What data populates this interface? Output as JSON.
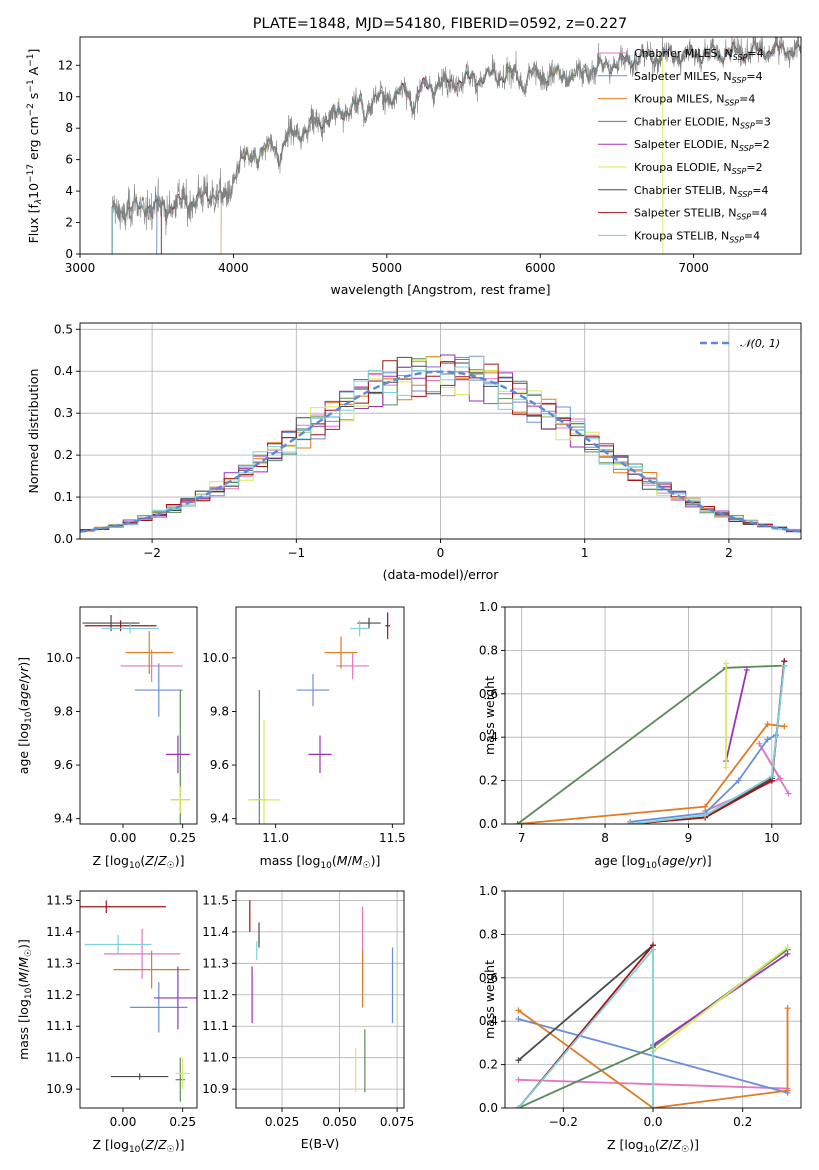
{
  "figure_title": "PLATE=1848, MJD=54180, FIBERID=0592, z=0.227",
  "models": [
    {
      "name": "Chabrier MILES, N$_{SSP}$=4",
      "label": "Chabrier MILES, N",
      "sub": "SSP",
      "suffix": "=4",
      "color": "#e377c2"
    },
    {
      "name": "Salpeter MILES, N$_{SSP}$=4",
      "label": "Salpeter MILES, N",
      "sub": "SSP",
      "suffix": "=4",
      "color": "#6a8fd8"
    },
    {
      "name": "Kroupa MILES, N$_{SSP}$=4",
      "label": "Kroupa MILES, N",
      "sub": "SSP",
      "suffix": "=4",
      "color": "#e07b22"
    },
    {
      "name": "Chabrier ELODIE, N$_{SSP}$=3",
      "label": "Chabrier ELODIE, N",
      "sub": "SSP",
      "suffix": "=3",
      "color": "#5a8a5a"
    },
    {
      "name": "Salpeter ELODIE, N$_{SSP}$=2",
      "label": "Salpeter ELODIE, N",
      "sub": "SSP",
      "suffix": "=2",
      "color": "#9a32b8"
    },
    {
      "name": "Kroupa ELODIE, N$_{SSP}$=2",
      "label": "Kroupa ELODIE, N",
      "sub": "SSP",
      "suffix": "=2",
      "color": "#d8ea5a"
    },
    {
      "name": "Chabrier STELIB, N$_{SSP}$=4",
      "label": "Chabrier STELIB, N",
      "sub": "SSP",
      "suffix": "=4",
      "color": "#4a4a4a"
    },
    {
      "name": "Salpeter STELIB, N$_{SSP}$=4",
      "label": "Salpeter STELIB, N",
      "sub": "SSP",
      "suffix": "=4",
      "color": "#a01515"
    },
    {
      "name": "Kroupa STELIB, N$_{SSP}$=4",
      "label": "Kroupa STELIB, N",
      "sub": "SSP",
      "suffix": "=4",
      "color": "#7fd0d8"
    }
  ],
  "chart_data": [
    {
      "id": "spectrum",
      "type": "line",
      "xlabel": "wavelength [Angstrom, rest frame]",
      "ylabel": "Flux [f_λ10^-17 erg cm^-2 s^-1 A^-1]",
      "ylabel_parts": {
        "a": "Flux [f",
        "b": "λ",
        "c": "10",
        "d": "−17",
        "e": " erg cm",
        "f": "−2",
        "g": " s",
        "h": "−1",
        "i": " A",
        "j": "−1",
        "k": "]"
      },
      "xlim": [
        3000,
        7700
      ],
      "ylim": [
        0,
        13.8
      ],
      "xticks": [
        3000,
        4000,
        5000,
        6000,
        7000
      ],
      "yticks": [
        0,
        2,
        4,
        6,
        8,
        10,
        12
      ],
      "observed_color": "#808080",
      "continuum_x": [
        3210,
        3400,
        3550,
        3700,
        3850,
        3950,
        4050,
        4200,
        4400,
        4600,
        4800,
        5000,
        5200,
        5400,
        5600,
        5800,
        6000,
        6200,
        6400,
        6600,
        6800,
        7000,
        7200,
        7400,
        7600
      ],
      "continuum_y": [
        2.6,
        3.0,
        3.0,
        3.4,
        4.2,
        4.8,
        6.0,
        6.6,
        7.6,
        8.6,
        9.4,
        10.0,
        10.5,
        10.9,
        11.2,
        11.4,
        11.4,
        11.3,
        11.9,
        12.4,
        12.6,
        12.7,
        12.8,
        12.9,
        13.0
      ],
      "model_start_x": [
        3210,
        3500,
        3210,
        3210,
        3920,
        3920,
        3210,
        3530,
        3210
      ],
      "model_end_x": [
        7700,
        7700,
        7700,
        7700,
        7700,
        6800,
        7700,
        7700,
        7700
      ]
    },
    {
      "id": "residuals",
      "type": "histogram",
      "xlabel": "(data-model)/error",
      "ylabel": "Normed distribution",
      "xlim": [
        -2.5,
        2.5
      ],
      "ylim": [
        0,
        0.515
      ],
      "xticks": [
        -2,
        -1,
        0,
        1,
        2
      ],
      "xtick_labels": [
        "−2",
        "−1",
        "0",
        "1",
        "2"
      ],
      "yticks": [
        0,
        0.1,
        0.2,
        0.3,
        0.4,
        0.5
      ],
      "ytick_labels": [
        "0.0",
        "0.1",
        "0.2",
        "0.3",
        "0.4",
        "0.5"
      ],
      "bins": {
        "start": -2.5,
        "end": 2.5,
        "width": 0.1
      },
      "reference": {
        "label": "N(0,1)",
        "sigma": 1,
        "color": "#5a8ad8"
      }
    },
    {
      "id": "age_vs_Z",
      "type": "scatter",
      "xlabel": "Z [log10(Z/Z☉)]",
      "ylabel": "age  [log10(age/yr)]",
      "xlim": [
        -0.18,
        0.31
      ],
      "ylim": [
        9.38,
        10.19
      ],
      "xticks": [
        0.0,
        0.25
      ],
      "xtick_labels": [
        "0.00",
        "0.25"
      ],
      "yticks": [
        9.4,
        9.6,
        9.8,
        10.0
      ],
      "ytick_labels": [
        "9.4",
        "9.6",
        "9.8",
        "10.0"
      ],
      "points": [
        {
          "x": 0.12,
          "y": 9.97,
          "xerr": 0.13,
          "yerr": 0.06
        },
        {
          "x": 0.15,
          "y": 9.88,
          "xerr": 0.1,
          "yerr": 0.1
        },
        {
          "x": 0.11,
          "y": 10.02,
          "xerr": 0.1,
          "yerr": 0.08
        },
        {
          "x": 0.24,
          "y": 9.47,
          "xerr": 0.04,
          "yerr": 0.41
        },
        {
          "x": 0.23,
          "y": 9.64,
          "xerr": 0.05,
          "yerr": 0.07
        },
        {
          "x": 0.24,
          "y": 9.47,
          "xerr": 0.04,
          "yerr": 0.05
        },
        {
          "x": -0.05,
          "y": 10.13,
          "xerr": 0.12,
          "yerr": 0.03
        },
        {
          "x": -0.01,
          "y": 10.12,
          "xerr": 0.15,
          "yerr": 0.02
        },
        {
          "x": 0.03,
          "y": 10.11,
          "xerr": 0.12,
          "yerr": 0.02
        }
      ]
    },
    {
      "id": "age_vs_mass",
      "type": "scatter",
      "xlabel": "mass [log10(M/M☉)]",
      "ylabel": "",
      "xlim": [
        10.83,
        11.55
      ],
      "ylim": [
        9.38,
        10.19
      ],
      "xticks": [
        11.0,
        11.5
      ],
      "xtick_labels": [
        "11.0",
        "11.5"
      ],
      "yticks": [
        9.4,
        9.6,
        9.8,
        10.0
      ],
      "ytick_labels": [
        "9.4",
        "9.6",
        "9.8",
        "10.0"
      ],
      "points": [
        {
          "x": 11.33,
          "y": 9.97,
          "xerr": 0.07,
          "yerr": 0.05
        },
        {
          "x": 11.16,
          "y": 9.88,
          "xerr": 0.07,
          "yerr": 0.06
        },
        {
          "x": 11.28,
          "y": 10.02,
          "xerr": 0.07,
          "yerr": 0.06
        },
        {
          "x": 10.93,
          "y": 9.47,
          "xerr": 0.03,
          "yerr": 0.41
        },
        {
          "x": 11.19,
          "y": 9.64,
          "xerr": 0.05,
          "yerr": 0.07
        },
        {
          "x": 10.95,
          "y": 9.47,
          "xerr": 0.07,
          "yerr": 0.3
        },
        {
          "x": 11.4,
          "y": 10.13,
          "xerr": 0.05,
          "yerr": 0.02
        },
        {
          "x": 11.48,
          "y": 10.12,
          "xerr": 0.01,
          "yerr": 0.05
        },
        {
          "x": 11.36,
          "y": 10.11,
          "xerr": 0.04,
          "yerr": 0.03
        }
      ]
    },
    {
      "id": "massweight_vs_age",
      "type": "line",
      "xlabel": "age  [log10(age/yr)]",
      "ylabel": "mass weight",
      "xlim": [
        6.8,
        10.35
      ],
      "ylim": [
        0,
        1
      ],
      "xticks": [
        7,
        8,
        9,
        10
      ],
      "xtick_labels": [
        "7",
        "8",
        "9",
        "10"
      ],
      "yticks": [
        0,
        0.2,
        0.4,
        0.6,
        0.8,
        1.0
      ],
      "ytick_labels": [
        "0.0",
        "0.2",
        "0.4",
        "0.6",
        "0.8",
        "1.0"
      ],
      "series": [
        {
          "x": [
            9.2,
            10.1,
            9.85,
            10.2
          ],
          "y": [
            0.06,
            0.21,
            0.37,
            0.14
          ]
        },
        {
          "x": [
            8.3,
            9.2,
            9.6,
            9.95,
            10.05
          ],
          "y": [
            0.01,
            0.05,
            0.2,
            0.39,
            0.41
          ]
        },
        {
          "x": [
            6.95,
            9.2,
            9.95,
            10.15
          ],
          "y": [
            0.0,
            0.08,
            0.46,
            0.45
          ]
        },
        {
          "x": [
            6.95,
            9.45,
            10.15
          ],
          "y": [
            0.0,
            0.72,
            0.73
          ]
        },
        {
          "x": [
            9.45,
            9.7
          ],
          "y": [
            0.29,
            0.71
          ]
        },
        {
          "x": [
            9.45,
            9.45
          ],
          "y": [
            0.26,
            0.74
          ]
        },
        {
          "x": [
            8.3,
            9.2,
            10.0,
            10.15
          ],
          "y": [
            0.0,
            0.03,
            0.21,
            0.75
          ]
        },
        {
          "x": [
            8.3,
            9.2,
            10.0,
            10.15
          ],
          "y": [
            0.0,
            0.03,
            0.2,
            0.75
          ]
        },
        {
          "x": [
            8.3,
            9.2,
            10.0,
            10.15
          ],
          "y": [
            0.0,
            0.04,
            0.22,
            0.73
          ]
        }
      ]
    },
    {
      "id": "mass_vs_Z",
      "type": "scatter",
      "xlabel": "Z [log10(Z/Z☉)]",
      "ylabel": "mass [log10(M/M☉)]",
      "xlim": [
        -0.18,
        0.31
      ],
      "ylim": [
        10.84,
        11.53
      ],
      "xticks": [
        0.0,
        0.25
      ],
      "xtick_labels": [
        "0.00",
        "0.25"
      ],
      "yticks": [
        10.9,
        11.0,
        11.1,
        11.2,
        11.3,
        11.4,
        11.5
      ],
      "ytick_labels": [
        "10.9",
        "11.0",
        "11.1",
        "11.2",
        "11.3",
        "11.4",
        "11.5"
      ],
      "points": [
        {
          "x": 0.08,
          "y": 11.33,
          "xerr": 0.16,
          "yerr": 0.08
        },
        {
          "x": 0.15,
          "y": 11.16,
          "xerr": 0.12,
          "yerr": 0.08
        },
        {
          "x": 0.12,
          "y": 11.28,
          "xerr": 0.16,
          "yerr": 0.06
        },
        {
          "x": 0.24,
          "y": 10.93,
          "xerr": 0.02,
          "yerr": 0.07
        },
        {
          "x": 0.23,
          "y": 11.19,
          "xerr": 0.1,
          "yerr": 0.1
        },
        {
          "x": 0.25,
          "y": 10.95,
          "xerr": 0.03,
          "yerr": 0.05
        },
        {
          "x": 0.07,
          "y": 10.94,
          "xerr": 0.12,
          "yerr": 0.01
        },
        {
          "x": -0.07,
          "y": 11.48,
          "xerr": 0.25,
          "yerr": 0.02
        },
        {
          "x": -0.02,
          "y": 11.36,
          "xerr": 0.14,
          "yerr": 0.03
        }
      ]
    },
    {
      "id": "mass_vs_EBV",
      "type": "scatter",
      "xlabel": "E(B-V)",
      "ylabel": "",
      "xlim": [
        0.005,
        0.078
      ],
      "ylim": [
        10.84,
        11.53
      ],
      "xticks": [
        0.025,
        0.05,
        0.075
      ],
      "xtick_labels": [
        "0.025",
        "0.050",
        "0.075"
      ],
      "yticks": [
        10.9,
        11.0,
        11.1,
        11.2,
        11.3,
        11.4,
        11.5
      ],
      "ytick_labels": [
        "10.9",
        "11.0",
        "11.1",
        "11.2",
        "11.3",
        "11.4",
        "11.5"
      ],
      "points": [
        {
          "x": 0.06,
          "y": 11.35,
          "xerr": 0,
          "yerr": 0.13
        },
        {
          "x": 0.073,
          "y": 11.23,
          "xerr": 0,
          "yerr": 0.12
        },
        {
          "x": 0.06,
          "y": 11.25,
          "xerr": 0,
          "yerr": 0.09
        },
        {
          "x": 0.061,
          "y": 10.99,
          "xerr": 0,
          "yerr": 0.1
        },
        {
          "x": 0.012,
          "y": 11.2,
          "xerr": 0,
          "yerr": 0.09
        },
        {
          "x": 0.057,
          "y": 10.96,
          "xerr": 0,
          "yerr": 0.07
        },
        {
          "x": 0.015,
          "y": 11.39,
          "xerr": 0,
          "yerr": 0.04
        },
        {
          "x": 0.011,
          "y": 11.45,
          "xerr": 0,
          "yerr": 0.05
        },
        {
          "x": 0.014,
          "y": 11.34,
          "xerr": 0,
          "yerr": 0.03
        }
      ]
    },
    {
      "id": "massweight_vs_Z",
      "type": "line",
      "xlabel": "Z [log10(Z/Z☉)]",
      "ylabel": "mass weight",
      "xlim": [
        -0.33,
        0.33
      ],
      "ylim": [
        0,
        1
      ],
      "xticks": [
        -0.2,
        0.0,
        0.2
      ],
      "xtick_labels": [
        "−0.2",
        "0.0",
        "0.2"
      ],
      "yticks": [
        0,
        0.2,
        0.4,
        0.6,
        0.8,
        1.0
      ],
      "ytick_labels": [
        "0.0",
        "0.2",
        "0.4",
        "0.6",
        "0.8",
        "1.0"
      ],
      "series": [
        {
          "x": [
            -0.3,
            0.3
          ],
          "y": [
            0.13,
            0.09
          ]
        },
        {
          "x": [
            -0.3,
            0.3
          ],
          "y": [
            0.41,
            0.07
          ]
        },
        {
          "x": [
            -0.3,
            0.0,
            0.3,
            0.3
          ],
          "y": [
            0.45,
            0.0,
            0.08,
            0.46
          ]
        },
        {
          "x": [
            -0.3,
            0.0,
            0.3
          ],
          "y": [
            0.0,
            0.28,
            0.73
          ]
        },
        {
          "x": [
            0.0,
            0.3
          ],
          "y": [
            0.29,
            0.71
          ]
        },
        {
          "x": [
            0.0,
            0.3
          ],
          "y": [
            0.26,
            0.74
          ]
        },
        {
          "x": [
            -0.3,
            0.0
          ],
          "y": [
            0.22,
            0.75
          ]
        },
        {
          "x": [
            -0.3,
            0.0
          ],
          "y": [
            0.0,
            0.75
          ]
        },
        {
          "x": [
            -0.3,
            0.0,
            0.0
          ],
          "y": [
            0.0,
            0.73,
            0.0
          ]
        }
      ]
    }
  ]
}
